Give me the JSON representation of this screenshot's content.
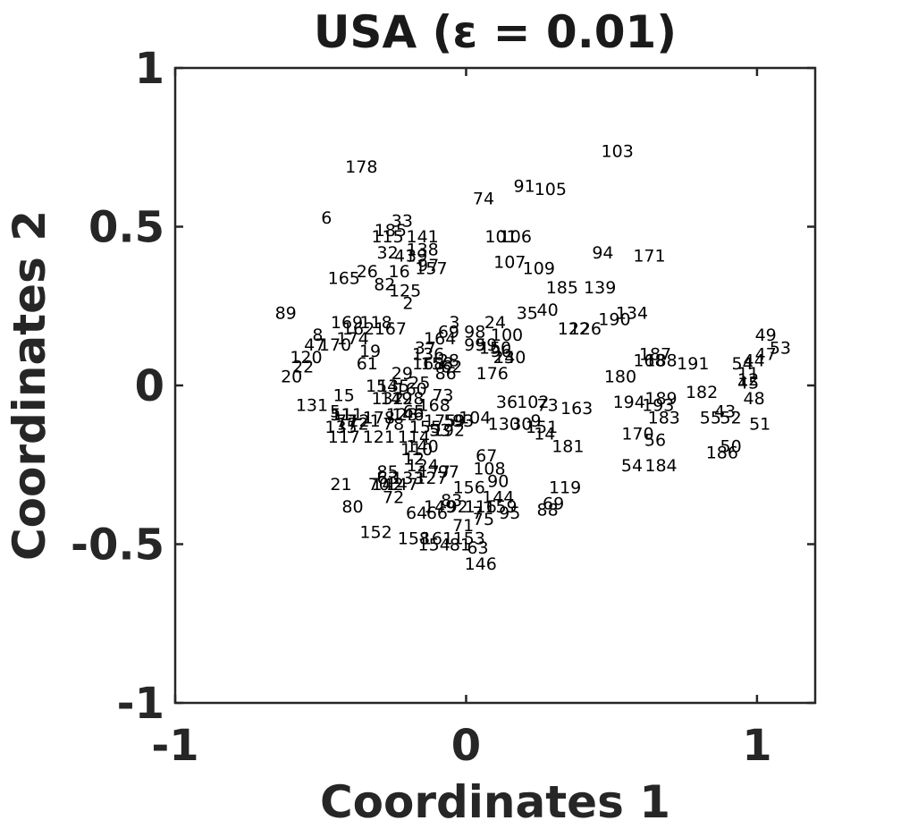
{
  "chart_data": {
    "type": "scatter",
    "title": "USA (ε = 0.01)",
    "xlabel": "Coordinates 1",
    "ylabel": "Coordinates 2",
    "xlim": [
      -1,
      1.2
    ],
    "ylim": [
      -1,
      1
    ],
    "xticks": [
      {
        "value": -1,
        "label": "-1"
      },
      {
        "value": 0,
        "label": "0"
      },
      {
        "value": 1,
        "label": "1"
      }
    ],
    "yticks": [
      {
        "value": 1,
        "label": "1"
      },
      {
        "value": 0.5,
        "label": "0.5"
      },
      {
        "value": 0,
        "label": "0"
      },
      {
        "value": -0.5,
        "label": "-0.5"
      },
      {
        "value": -1,
        "label": "-1"
      }
    ],
    "grid": false,
    "marker": "text-label",
    "points": [
      {
        "label": "103",
        "x": 0.52,
        "y": 0.74
      },
      {
        "label": "178",
        "x": -0.36,
        "y": 0.69
      },
      {
        "label": "91",
        "x": 0.2,
        "y": 0.63
      },
      {
        "label": "105",
        "x": 0.29,
        "y": 0.62
      },
      {
        "label": "74",
        "x": 0.06,
        "y": 0.59
      },
      {
        "label": "6",
        "x": -0.48,
        "y": 0.53
      },
      {
        "label": "33",
        "x": -0.22,
        "y": 0.52
      },
      {
        "label": "185",
        "x": -0.26,
        "y": 0.49
      },
      {
        "label": "115",
        "x": -0.27,
        "y": 0.47
      },
      {
        "label": "141",
        "x": -0.15,
        "y": 0.47
      },
      {
        "label": "101",
        "x": 0.12,
        "y": 0.47
      },
      {
        "label": "106",
        "x": 0.17,
        "y": 0.47
      },
      {
        "label": "138",
        "x": -0.15,
        "y": 0.43
      },
      {
        "label": "94",
        "x": 0.47,
        "y": 0.42
      },
      {
        "label": "171",
        "x": 0.63,
        "y": 0.41
      },
      {
        "label": "32",
        "x": -0.27,
        "y": 0.42
      },
      {
        "label": "41",
        "x": -0.21,
        "y": 0.41
      },
      {
        "label": "39",
        "x": -0.17,
        "y": 0.41
      },
      {
        "label": "107",
        "x": 0.15,
        "y": 0.39
      },
      {
        "label": "109",
        "x": 0.25,
        "y": 0.37
      },
      {
        "label": "97",
        "x": -0.13,
        "y": 0.38
      },
      {
        "label": "157",
        "x": -0.12,
        "y": 0.37
      },
      {
        "label": "165",
        "x": -0.42,
        "y": 0.34
      },
      {
        "label": "26",
        "x": -0.34,
        "y": 0.36
      },
      {
        "label": "16",
        "x": -0.23,
        "y": 0.36
      },
      {
        "label": "82",
        "x": -0.28,
        "y": 0.32
      },
      {
        "label": "125",
        "x": -0.21,
        "y": 0.3
      },
      {
        "label": "185",
        "x": 0.33,
        "y": 0.31
      },
      {
        "label": "139",
        "x": 0.46,
        "y": 0.31
      },
      {
        "label": "2",
        "x": -0.2,
        "y": 0.26
      },
      {
        "label": "89",
        "x": -0.62,
        "y": 0.23
      },
      {
        "label": "35",
        "x": 0.21,
        "y": 0.23
      },
      {
        "label": "40",
        "x": 0.28,
        "y": 0.24
      },
      {
        "label": "134",
        "x": 0.57,
        "y": 0.23
      },
      {
        "label": "190",
        "x": 0.51,
        "y": 0.21
      },
      {
        "label": "169",
        "x": -0.41,
        "y": 0.2
      },
      {
        "label": "118",
        "x": -0.31,
        "y": 0.2
      },
      {
        "label": "162",
        "x": -0.37,
        "y": 0.18
      },
      {
        "label": "167",
        "x": -0.26,
        "y": 0.18
      },
      {
        "label": "3",
        "x": -0.04,
        "y": 0.2
      },
      {
        "label": "24",
        "x": 0.1,
        "y": 0.2
      },
      {
        "label": "122",
        "x": 0.37,
        "y": 0.18
      },
      {
        "label": "126",
        "x": 0.41,
        "y": 0.18
      },
      {
        "label": "69",
        "x": -0.06,
        "y": 0.17
      },
      {
        "label": "98",
        "x": 0.03,
        "y": 0.17
      },
      {
        "label": "100",
        "x": 0.14,
        "y": 0.16
      },
      {
        "label": "8",
        "x": -0.51,
        "y": 0.16
      },
      {
        "label": "174",
        "x": -0.39,
        "y": 0.15
      },
      {
        "label": "164",
        "x": -0.09,
        "y": 0.15
      },
      {
        "label": "47",
        "x": -0.52,
        "y": 0.13
      },
      {
        "label": "170",
        "x": -0.45,
        "y": 0.13
      },
      {
        "label": "37",
        "x": -0.14,
        "y": 0.12
      },
      {
        "label": "99",
        "x": 0.03,
        "y": 0.13
      },
      {
        "label": "59",
        "x": 0.07,
        "y": 0.13
      },
      {
        "label": "150",
        "x": 0.1,
        "y": 0.12
      },
      {
        "label": "19",
        "x": -0.33,
        "y": 0.11
      },
      {
        "label": "96",
        "x": 0.12,
        "y": 0.11
      },
      {
        "label": "136",
        "x": -0.13,
        "y": 0.1
      },
      {
        "label": "23",
        "x": 0.13,
        "y": 0.09
      },
      {
        "label": "140",
        "x": 0.15,
        "y": 0.09
      },
      {
        "label": "120",
        "x": -0.55,
        "y": 0.09
      },
      {
        "label": "187",
        "x": 0.65,
        "y": 0.1
      },
      {
        "label": "168",
        "x": 0.63,
        "y": 0.08
      },
      {
        "label": "188",
        "x": 0.67,
        "y": 0.08
      },
      {
        "label": "191",
        "x": 0.78,
        "y": 0.07
      },
      {
        "label": "61",
        "x": -0.34,
        "y": 0.07
      },
      {
        "label": "168",
        "x": -0.13,
        "y": 0.07
      },
      {
        "label": "158",
        "x": -0.1,
        "y": 0.07
      },
      {
        "label": "28",
        "x": -0.06,
        "y": 0.08
      },
      {
        "label": "62",
        "x": -0.05,
        "y": 0.06
      },
      {
        "label": "22",
        "x": -0.56,
        "y": 0.06
      },
      {
        "label": "86",
        "x": -0.07,
        "y": 0.04
      },
      {
        "label": "176",
        "x": 0.09,
        "y": 0.04
      },
      {
        "label": "180",
        "x": 0.53,
        "y": 0.03
      },
      {
        "label": "54",
        "x": 0.95,
        "y": 0.07
      },
      {
        "label": "44",
        "x": 0.99,
        "y": 0.08
      },
      {
        "label": "49",
        "x": 1.03,
        "y": 0.16
      },
      {
        "label": "47",
        "x": 1.03,
        "y": 0.1
      },
      {
        "label": "53",
        "x": 1.08,
        "y": 0.12
      },
      {
        "label": "20",
        "x": -0.6,
        "y": 0.03
      },
      {
        "label": "29",
        "x": -0.22,
        "y": 0.04
      },
      {
        "label": "25",
        "x": -0.16,
        "y": 0.01
      },
      {
        "label": "11",
        "x": 0.97,
        "y": 0.04
      },
      {
        "label": "12",
        "x": 0.97,
        "y": 0.02
      },
      {
        "label": "45",
        "x": 0.97,
        "y": 0.01
      },
      {
        "label": "154",
        "x": -0.29,
        "y": -0.0
      },
      {
        "label": "135",
        "x": -0.25,
        "y": -0.0
      },
      {
        "label": "160",
        "x": -0.19,
        "y": -0.01
      },
      {
        "label": "15",
        "x": -0.42,
        "y": -0.03
      },
      {
        "label": "73",
        "x": -0.08,
        "y": -0.03
      },
      {
        "label": "131",
        "x": -0.53,
        "y": -0.06
      },
      {
        "label": "132",
        "x": -0.27,
        "y": -0.04
      },
      {
        "label": "149",
        "x": -0.24,
        "y": -0.04
      },
      {
        "label": "128",
        "x": -0.2,
        "y": -0.04
      },
      {
        "label": "168",
        "x": -0.11,
        "y": -0.06
      },
      {
        "label": "36",
        "x": 0.14,
        "y": -0.05
      },
      {
        "label": "102",
        "x": 0.23,
        "y": -0.05
      },
      {
        "label": "73",
        "x": 0.28,
        "y": -0.06
      },
      {
        "label": "163",
        "x": 0.38,
        "y": -0.07
      },
      {
        "label": "194",
        "x": 0.56,
        "y": -0.05
      },
      {
        "label": "189",
        "x": 0.67,
        "y": -0.04
      },
      {
        "label": "193",
        "x": 0.66,
        "y": -0.06
      },
      {
        "label": "182",
        "x": 0.81,
        "y": -0.02
      },
      {
        "label": "48",
        "x": 0.99,
        "y": -0.04
      },
      {
        "label": "43",
        "x": 0.89,
        "y": -0.08
      },
      {
        "label": "5",
        "x": -0.45,
        "y": -0.08
      },
      {
        "label": "51",
        "x": -0.43,
        "y": -0.09
      },
      {
        "label": "111",
        "x": -0.41,
        "y": -0.09
      },
      {
        "label": "123",
        "x": -0.22,
        "y": -0.09
      },
      {
        "label": "146",
        "x": -0.2,
        "y": -0.09
      },
      {
        "label": "65",
        "x": -0.18,
        "y": -0.08
      },
      {
        "label": "121",
        "x": -0.35,
        "y": -0.11
      },
      {
        "label": "77",
        "x": -0.41,
        "y": -0.11
      },
      {
        "label": "172",
        "x": -0.39,
        "y": -0.12
      },
      {
        "label": "178",
        "x": -0.3,
        "y": -0.1
      },
      {
        "label": "78",
        "x": -0.25,
        "y": -0.12
      },
      {
        "label": "175",
        "x": -0.09,
        "y": -0.11
      },
      {
        "label": "104",
        "x": 0.03,
        "y": -0.1
      },
      {
        "label": "59",
        "x": -0.04,
        "y": -0.11
      },
      {
        "label": "93",
        "x": -0.01,
        "y": -0.11
      },
      {
        "label": "130",
        "x": 0.13,
        "y": -0.12
      },
      {
        "label": "30",
        "x": 0.19,
        "y": -0.12
      },
      {
        "label": "9",
        "x": 0.24,
        "y": -0.11
      },
      {
        "label": "183",
        "x": 0.68,
        "y": -0.1
      },
      {
        "label": "55",
        "x": 0.84,
        "y": -0.1
      },
      {
        "label": "52",
        "x": 0.91,
        "y": -0.1
      },
      {
        "label": "51",
        "x": 1.01,
        "y": -0.12
      },
      {
        "label": "135",
        "x": -0.43,
        "y": -0.13
      },
      {
        "label": "155",
        "x": -0.14,
        "y": -0.13
      },
      {
        "label": "53",
        "x": -0.09,
        "y": -0.14
      },
      {
        "label": "192",
        "x": -0.06,
        "y": -0.14
      },
      {
        "label": "151",
        "x": 0.26,
        "y": -0.13
      },
      {
        "label": "14",
        "x": 0.27,
        "y": -0.15
      },
      {
        "label": "117",
        "x": -0.42,
        "y": -0.16
      },
      {
        "label": "121",
        "x": -0.3,
        "y": -0.16
      },
      {
        "label": "114",
        "x": -0.18,
        "y": -0.16
      },
      {
        "label": "170",
        "x": 0.59,
        "y": -0.15
      },
      {
        "label": "56",
        "x": 0.65,
        "y": -0.17
      },
      {
        "label": "181",
        "x": 0.35,
        "y": -0.19
      },
      {
        "label": "140",
        "x": -0.15,
        "y": -0.19
      },
      {
        "label": "50",
        "x": 0.91,
        "y": -0.19
      },
      {
        "label": "186",
        "x": 0.88,
        "y": -0.21
      },
      {
        "label": "110",
        "x": -0.17,
        "y": -0.2
      },
      {
        "label": "67",
        "x": 0.07,
        "y": -0.22
      },
      {
        "label": "12",
        "x": -0.18,
        "y": -0.23
      },
      {
        "label": "54",
        "x": 0.57,
        "y": -0.25
      },
      {
        "label": "184",
        "x": 0.67,
        "y": -0.25
      },
      {
        "label": "124",
        "x": -0.15,
        "y": -0.25
      },
      {
        "label": "108",
        "x": 0.08,
        "y": -0.26
      },
      {
        "label": "85",
        "x": -0.27,
        "y": -0.27
      },
      {
        "label": "177",
        "x": -0.11,
        "y": -0.27
      },
      {
        "label": "97",
        "x": -0.06,
        "y": -0.27
      },
      {
        "label": "63",
        "x": -0.27,
        "y": -0.29
      },
      {
        "label": "133",
        "x": -0.2,
        "y": -0.29
      },
      {
        "label": "127",
        "x": -0.12,
        "y": -0.29
      },
      {
        "label": "90",
        "x": 0.11,
        "y": -0.3
      },
      {
        "label": "21",
        "x": -0.43,
        "y": -0.31
      },
      {
        "label": "70",
        "x": -0.3,
        "y": -0.31
      },
      {
        "label": "142",
        "x": -0.27,
        "y": -0.31
      },
      {
        "label": "147",
        "x": -0.22,
        "y": -0.31
      },
      {
        "label": "119",
        "x": 0.34,
        "y": -0.32
      },
      {
        "label": "156",
        "x": 0.01,
        "y": -0.32
      },
      {
        "label": "72",
        "x": -0.25,
        "y": -0.35
      },
      {
        "label": "144",
        "x": 0.11,
        "y": -0.35
      },
      {
        "label": "83",
        "x": -0.05,
        "y": -0.36
      },
      {
        "label": "80",
        "x": -0.39,
        "y": -0.38
      },
      {
        "label": "149",
        "x": -0.09,
        "y": -0.38
      },
      {
        "label": "92",
        "x": -0.03,
        "y": -0.38
      },
      {
        "label": "116",
        "x": 0.05,
        "y": -0.38
      },
      {
        "label": "159",
        "x": 0.12,
        "y": -0.38
      },
      {
        "label": "69",
        "x": 0.3,
        "y": -0.37
      },
      {
        "label": "88",
        "x": 0.28,
        "y": -0.39
      },
      {
        "label": "64",
        "x": -0.17,
        "y": -0.4
      },
      {
        "label": "66",
        "x": -0.1,
        "y": -0.4
      },
      {
        "label": "7",
        "x": 0.04,
        "y": -0.4
      },
      {
        "label": "75",
        "x": 0.06,
        "y": -0.42
      },
      {
        "label": "95",
        "x": 0.15,
        "y": -0.4
      },
      {
        "label": "71",
        "x": -0.01,
        "y": -0.44
      },
      {
        "label": "152",
        "x": -0.31,
        "y": -0.46
      },
      {
        "label": "158",
        "x": -0.18,
        "y": -0.48
      },
      {
        "label": "161",
        "x": -0.1,
        "y": -0.48
      },
      {
        "label": "153",
        "x": 0.01,
        "y": -0.48
      },
      {
        "label": "154",
        "x": -0.11,
        "y": -0.5
      },
      {
        "label": "81",
        "x": -0.02,
        "y": -0.5
      },
      {
        "label": "63",
        "x": 0.04,
        "y": -0.51
      },
      {
        "label": "146",
        "x": 0.05,
        "y": -0.56
      }
    ]
  }
}
